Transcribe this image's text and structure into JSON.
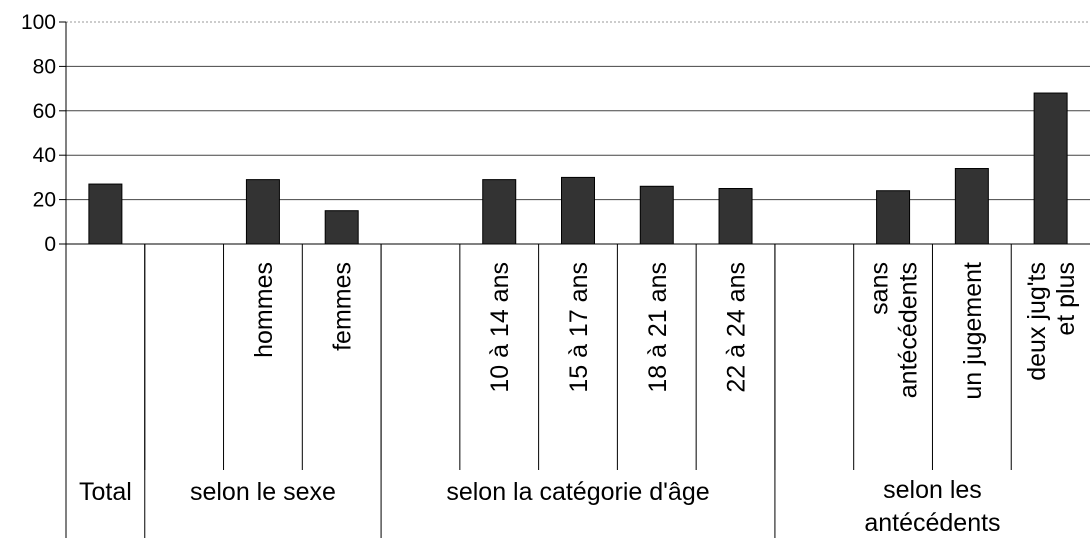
{
  "chart_data": {
    "type": "bar",
    "ylim": [
      0,
      100
    ],
    "yticks": [
      0,
      20,
      40,
      60,
      80,
      100
    ],
    "grid": true,
    "bar_color": "#333333",
    "categories": [
      {
        "label": [],
        "value": 27
      },
      {
        "label": [],
        "value": null
      },
      {
        "label": [
          "hommes"
        ],
        "value": 29
      },
      {
        "label": [
          "femmes"
        ],
        "value": 15
      },
      {
        "label": [],
        "value": null
      },
      {
        "label": [
          "10 à 14 ans"
        ],
        "value": 29
      },
      {
        "label": [
          "15 à 17 ans"
        ],
        "value": 30
      },
      {
        "label": [
          "18 à 21 ans"
        ],
        "value": 26
      },
      {
        "label": [
          "22 à 24 ans"
        ],
        "value": 25
      },
      {
        "label": [],
        "value": null
      },
      {
        "label": [
          "sans",
          "antécédents"
        ],
        "value": 24
      },
      {
        "label": [
          "un jugement"
        ],
        "value": 34
      },
      {
        "label": [
          "deux jug'ts",
          "et plus"
        ],
        "value": 68
      }
    ],
    "groups": [
      {
        "label": [
          "Total"
        ],
        "start": 0,
        "end": 1
      },
      {
        "label": [
          "selon le sexe"
        ],
        "start": 1,
        "end": 4
      },
      {
        "label": [
          "selon la catégorie d'âge"
        ],
        "start": 4,
        "end": 9
      },
      {
        "label": [
          "selon les",
          "antécédents"
        ],
        "start": 9,
        "end": 13
      }
    ]
  }
}
